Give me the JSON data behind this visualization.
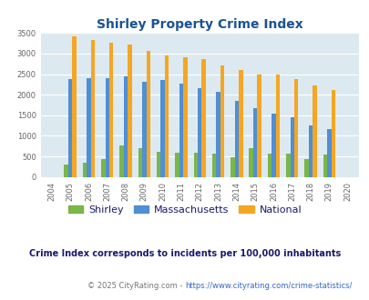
{
  "title": "Shirley Property Crime Index",
  "years": [
    2004,
    2005,
    2006,
    2007,
    2008,
    2009,
    2010,
    2011,
    2012,
    2013,
    2014,
    2015,
    2016,
    2017,
    2018,
    2019,
    2020
  ],
  "shirley": [
    0,
    310,
    350,
    440,
    760,
    700,
    620,
    600,
    580,
    570,
    475,
    700,
    560,
    560,
    430,
    550,
    0
  ],
  "massachusetts": [
    0,
    2380,
    2410,
    2410,
    2440,
    2310,
    2360,
    2260,
    2165,
    2060,
    1855,
    1680,
    1550,
    1450,
    1260,
    1165,
    0
  ],
  "national": [
    0,
    3420,
    3340,
    3270,
    3220,
    3060,
    2960,
    2920,
    2870,
    2720,
    2600,
    2500,
    2480,
    2380,
    2220,
    2110,
    0
  ],
  "shirley_color": "#7ab648",
  "massachusetts_color": "#4f8fd4",
  "national_color": "#f5a623",
  "bg_color": "#dce9f0",
  "ylim": [
    0,
    3500
  ],
  "yticks": [
    0,
    500,
    1000,
    1500,
    2000,
    2500,
    3000,
    3500
  ],
  "subtitle": "Crime Index corresponds to incidents per 100,000 inhabitants",
  "title_color": "#1a5296",
  "subtitle_color": "#1a1a6e",
  "footer_color": "#777777",
  "url_color": "#3366cc"
}
